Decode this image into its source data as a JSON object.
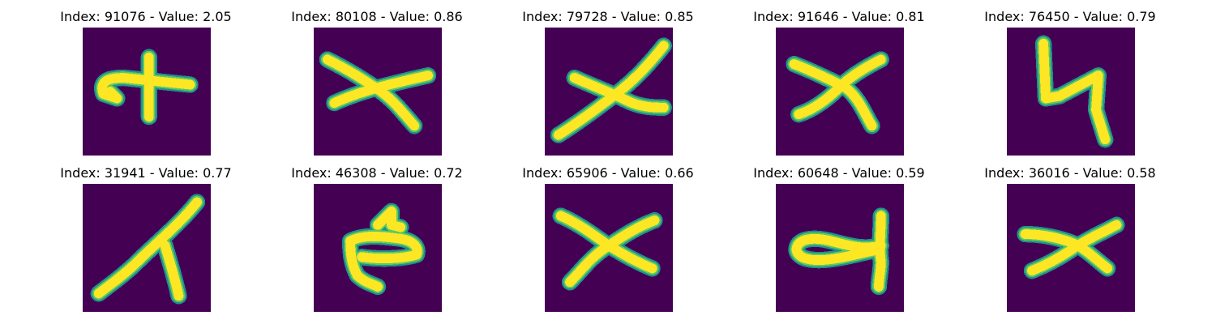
{
  "colors": {
    "background": "#440154",
    "stroke_core": "#fde725",
    "stroke_edge": "#21918c",
    "stroke_mid": "#5ec962"
  },
  "tiles": [
    {
      "title": "Index: 91076 - Value: 2.05"
    },
    {
      "title": "Index: 80108 - Value: 0.86"
    },
    {
      "title": "Index: 79728 - Value: 0.85"
    },
    {
      "title": "Index: 91646 - Value: 0.81"
    },
    {
      "title": "Index: 76450 - Value: 0.79"
    },
    {
      "title": "Index: 31941 - Value: 0.77"
    },
    {
      "title": "Index: 46308 - Value: 0.72"
    },
    {
      "title": "Index: 65906 - Value: 0.66"
    },
    {
      "title": "Index: 60648 - Value: 0.59"
    },
    {
      "title": "Index: 36016 - Value: 0.58"
    }
  ]
}
